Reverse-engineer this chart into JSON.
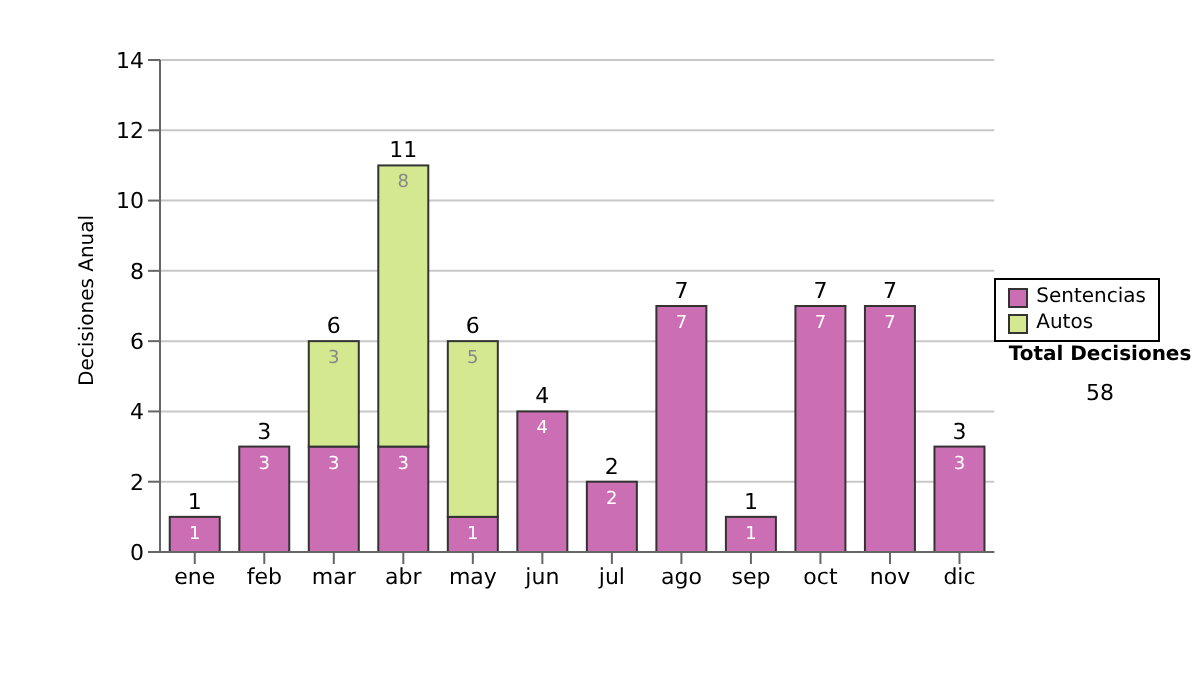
{
  "chart_data": {
    "type": "bar",
    "stacked": true,
    "ylabel": "Decisiones Anual",
    "categories": [
      "ene",
      "feb",
      "mar",
      "abr",
      "may",
      "jun",
      "jul",
      "ago",
      "sep",
      "oct",
      "nov",
      "dic"
    ],
    "series": [
      {
        "name": "Sentencias",
        "color": "#cc6eb4",
        "values": [
          1,
          3,
          3,
          3,
          1,
          4,
          2,
          7,
          1,
          7,
          7,
          3
        ],
        "value_labels": [
          "1",
          "3",
          "3",
          "3",
          "1",
          "4",
          "2",
          "7",
          "1",
          "7",
          "7",
          "3"
        ]
      },
      {
        "name": "Autos",
        "color": "#d4e890",
        "values": [
          0,
          0,
          3,
          8,
          5,
          0,
          0,
          0,
          0,
          0,
          0,
          0
        ],
        "value_labels": [
          null,
          null,
          "3",
          "8",
          "5",
          null,
          null,
          null,
          null,
          null,
          null,
          null
        ]
      }
    ],
    "totals": [
      "1",
      "3",
      "6",
      "11",
      "6",
      "4",
      "2",
      "7",
      "1",
      "7",
      "7",
      "3"
    ],
    "ylim": [
      0,
      14
    ],
    "yticks": [
      0,
      2,
      4,
      6,
      8,
      10,
      12,
      14
    ],
    "grid": "y",
    "legend": "right",
    "annotations": [
      "Total Decisiones",
      "58"
    ]
  }
}
